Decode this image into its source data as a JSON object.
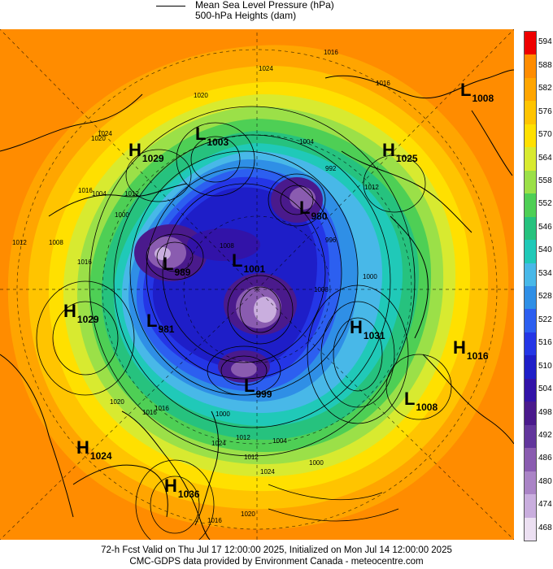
{
  "legend": {
    "line1": "Mean Sea Level Pressure (hPa)",
    "line2": "500-hPa Heights (dam)"
  },
  "colorbar": {
    "labels": [
      "594",
      "588",
      "582",
      "576",
      "570",
      "564",
      "558",
      "552",
      "546",
      "540",
      "534",
      "528",
      "522",
      "516",
      "510",
      "504",
      "498",
      "492",
      "486",
      "480",
      "474",
      "468"
    ],
    "colors": [
      "#ee0000",
      "#ff8c00",
      "#ffa500",
      "#ffc400",
      "#ffe000",
      "#d8ea30",
      "#9be048",
      "#4ecf55",
      "#26c27e",
      "#20c9b8",
      "#48b8e8",
      "#2f8fe6",
      "#2c5ff0",
      "#2436e6",
      "#1e1ec8",
      "#3213a8",
      "#4a1a8c",
      "#62369c",
      "#8a5cb0",
      "#aa84c6",
      "#c9aede",
      "#ece0f2"
    ]
  },
  "systems": [
    {
      "id": "l1008-ne",
      "type": "L",
      "value": "1008"
    },
    {
      "id": "h1029-nw",
      "type": "H",
      "value": "1029"
    },
    {
      "id": "l1003",
      "type": "L",
      "value": "1003"
    },
    {
      "id": "h1025",
      "type": "H",
      "value": "1025"
    },
    {
      "id": "l980",
      "type": "L",
      "value": "980"
    },
    {
      "id": "l989",
      "type": "L",
      "value": "989"
    },
    {
      "id": "l1001",
      "type": "L",
      "value": "1001"
    },
    {
      "id": "h1029-w",
      "type": "H",
      "value": "1029"
    },
    {
      "id": "l981",
      "type": "L",
      "value": "981"
    },
    {
      "id": "h1031",
      "type": "H",
      "value": "1031"
    },
    {
      "id": "h1016",
      "type": "H",
      "value": "1016"
    },
    {
      "id": "l999",
      "type": "L",
      "value": "999"
    },
    {
      "id": "l1008-se",
      "type": "L",
      "value": "1008"
    },
    {
      "id": "h1024",
      "type": "H",
      "value": "1024"
    },
    {
      "id": "h1036",
      "type": "H",
      "value": "1036"
    }
  ],
  "isobar_labels": [
    "1016",
    "1024",
    "1020",
    "1020",
    "1024",
    "1016",
    "1012",
    "1004",
    "992",
    "1012",
    "1016",
    "1000",
    "1008",
    "1016",
    "1012",
    "1004",
    "996",
    "1008",
    "1000",
    "1008",
    "1000",
    "1024",
    "1016",
    "1020",
    "1016",
    "1012",
    "1004",
    "1000",
    "1012",
    "1024",
    "1020",
    "1016"
  ],
  "footer": {
    "line1": "72-h Fcst Valid on Thu Jul 17 12:00:00 2025, Initialized on Mon Jul 14 12:00:00 2025",
    "line2": "CMC-GDPS data provided by Environment Canada - meteocentre.com"
  }
}
